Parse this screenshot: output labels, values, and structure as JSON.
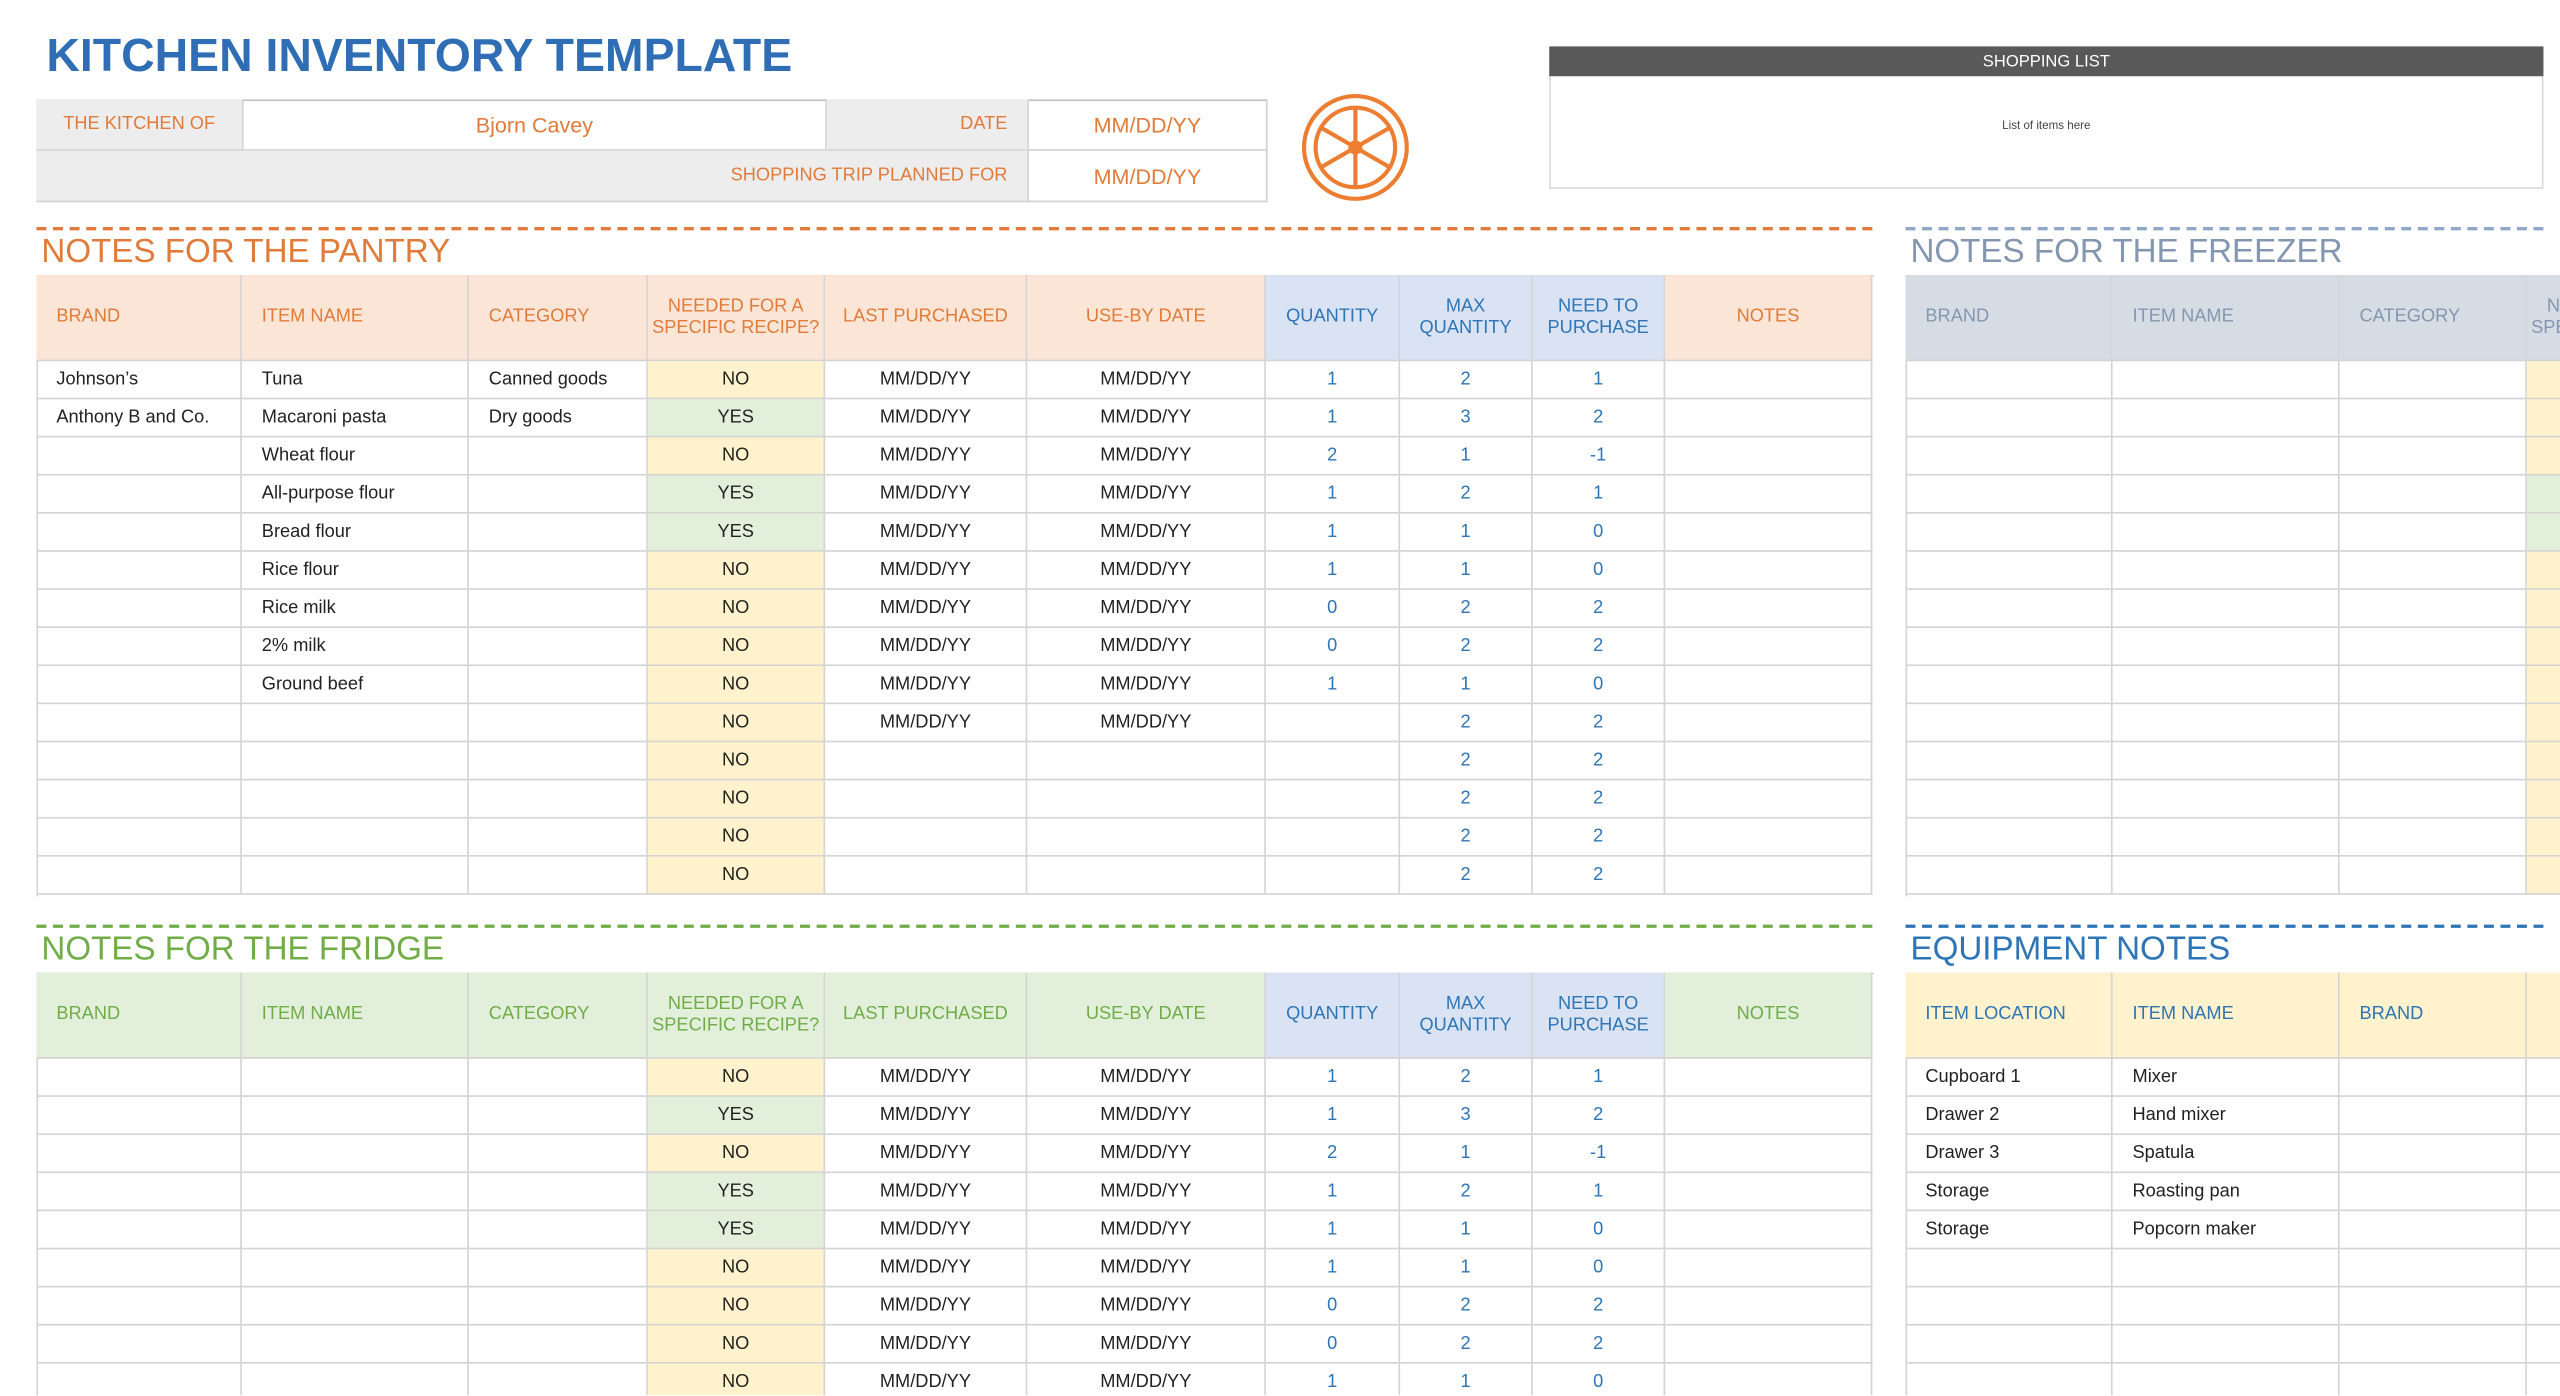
{
  "header": {
    "title": "KITCHEN INVENTORY TEMPLATE",
    "kitchen_of_label": "THE KITCHEN OF",
    "kitchen_of": "Bjorn Cavey",
    "date_label": "DATE",
    "date": "MM/DD/YY",
    "trip_label": "SHOPPING TRIP PLANNED FOR",
    "trip_date": "MM/DD/YY"
  },
  "shopping_list": {
    "title": "SHOPPING LIST",
    "text": "List of items here"
  },
  "pantry": {
    "title": "NOTES FOR THE PANTRY",
    "columns": [
      "BRAND",
      "ITEM NAME",
      "CATEGORY",
      "NEEDED FOR A SPECIFIC RECIPE?",
      "LAST PURCHASED",
      "USE-BY DATE",
      "QUANTITY",
      "MAX QUANTITY",
      "NEED TO PURCHASE",
      "NOTES"
    ],
    "rows": [
      [
        "Johnson’s",
        "Tuna",
        "Canned goods",
        "NO",
        "MM/DD/YY",
        "MM/DD/YY",
        1,
        2,
        1,
        null
      ],
      [
        "Anthony B and Co.",
        "Macaroni pasta",
        "Dry goods",
        "YES",
        "MM/DD/YY",
        "MM/DD/YY",
        1,
        3,
        2,
        null
      ],
      [
        null,
        "Wheat flour",
        null,
        "NO",
        "MM/DD/YY",
        "MM/DD/YY",
        2,
        1,
        -1,
        null
      ],
      [
        null,
        "All-purpose flour",
        null,
        "YES",
        "MM/DD/YY",
        "MM/DD/YY",
        1,
        2,
        1,
        null
      ],
      [
        null,
        "Bread flour",
        null,
        "YES",
        "MM/DD/YY",
        "MM/DD/YY",
        1,
        1,
        0,
        null
      ],
      [
        null,
        "Rice flour",
        null,
        "NO",
        "MM/DD/YY",
        "MM/DD/YY",
        1,
        1,
        0,
        null
      ],
      [
        null,
        "Rice milk",
        null,
        "NO",
        "MM/DD/YY",
        "MM/DD/YY",
        0,
        2,
        2,
        null
      ],
      [
        null,
        "2% milk",
        null,
        "NO",
        "MM/DD/YY",
        "MM/DD/YY",
        0,
        2,
        2,
        null
      ],
      [
        null,
        "Ground beef",
        null,
        "NO",
        "MM/DD/YY",
        "MM/DD/YY",
        1,
        1,
        0,
        null
      ],
      [
        null,
        null,
        null,
        "NO",
        "MM/DD/YY",
        "MM/DD/YY",
        null,
        2,
        2,
        null
      ],
      [
        null,
        null,
        null,
        "NO",
        null,
        null,
        null,
        2,
        2,
        null
      ],
      [
        null,
        null,
        null,
        "NO",
        null,
        null,
        null,
        2,
        2,
        null
      ],
      [
        null,
        null,
        null,
        "NO",
        null,
        null,
        null,
        2,
        2,
        null
      ],
      [
        null,
        null,
        null,
        "NO",
        null,
        null,
        null,
        2,
        2,
        null
      ]
    ]
  },
  "fridge": {
    "title": "NOTES FOR THE FRIDGE",
    "columns": [
      "BRAND",
      "ITEM NAME",
      "CATEGORY",
      "NEEDED FOR A SPECIFIC RECIPE?",
      "LAST PURCHASED",
      "USE-BY DATE",
      "QUANTITY",
      "MAX QUANTITY",
      "NEED TO PURCHASE",
      "NOTES"
    ],
    "rows": [
      [
        null,
        null,
        null,
        "NO",
        "MM/DD/YY",
        "MM/DD/YY",
        1,
        2,
        1,
        null
      ],
      [
        null,
        null,
        null,
        "YES",
        "MM/DD/YY",
        "MM/DD/YY",
        1,
        3,
        2,
        null
      ],
      [
        null,
        null,
        null,
        "NO",
        "MM/DD/YY",
        "MM/DD/YY",
        2,
        1,
        -1,
        null
      ],
      [
        null,
        null,
        null,
        "YES",
        "MM/DD/YY",
        "MM/DD/YY",
        1,
        2,
        1,
        null
      ],
      [
        null,
        null,
        null,
        "YES",
        "MM/DD/YY",
        "MM/DD/YY",
        1,
        1,
        0,
        null
      ],
      [
        null,
        null,
        null,
        "NO",
        "MM/DD/YY",
        "MM/DD/YY",
        1,
        1,
        0,
        null
      ],
      [
        null,
        null,
        null,
        "NO",
        "MM/DD/YY",
        "MM/DD/YY",
        0,
        2,
        2,
        null
      ],
      [
        null,
        null,
        null,
        "NO",
        "MM/DD/YY",
        "MM/DD/YY",
        0,
        2,
        2,
        null
      ],
      [
        null,
        null,
        null,
        "NO",
        "MM/DD/YY",
        "MM/DD/YY",
        1,
        1,
        0,
        null
      ]
    ]
  },
  "freezer": {
    "title": "NOTES FOR THE FREEZER",
    "columns": [
      "BRAND",
      "ITEM NAME",
      "CATEGORY",
      "NEEDED FOR A SPECIFIC RECIPE?"
    ]
  },
  "equipment": {
    "title": "EQUIPMENT NOTES",
    "columns": [
      "ITEM LOCATION",
      "ITEM NAME",
      "BRAND"
    ],
    "rows": [
      [
        "Cupboard 1",
        "Mixer"
      ],
      [
        "Drawer 2",
        "Hand mixer"
      ],
      [
        "Drawer 3",
        "Spatula"
      ],
      [
        "Storage",
        "Roasting pan"
      ],
      [
        "Storage",
        "Popcorn maker"
      ]
    ]
  }
}
